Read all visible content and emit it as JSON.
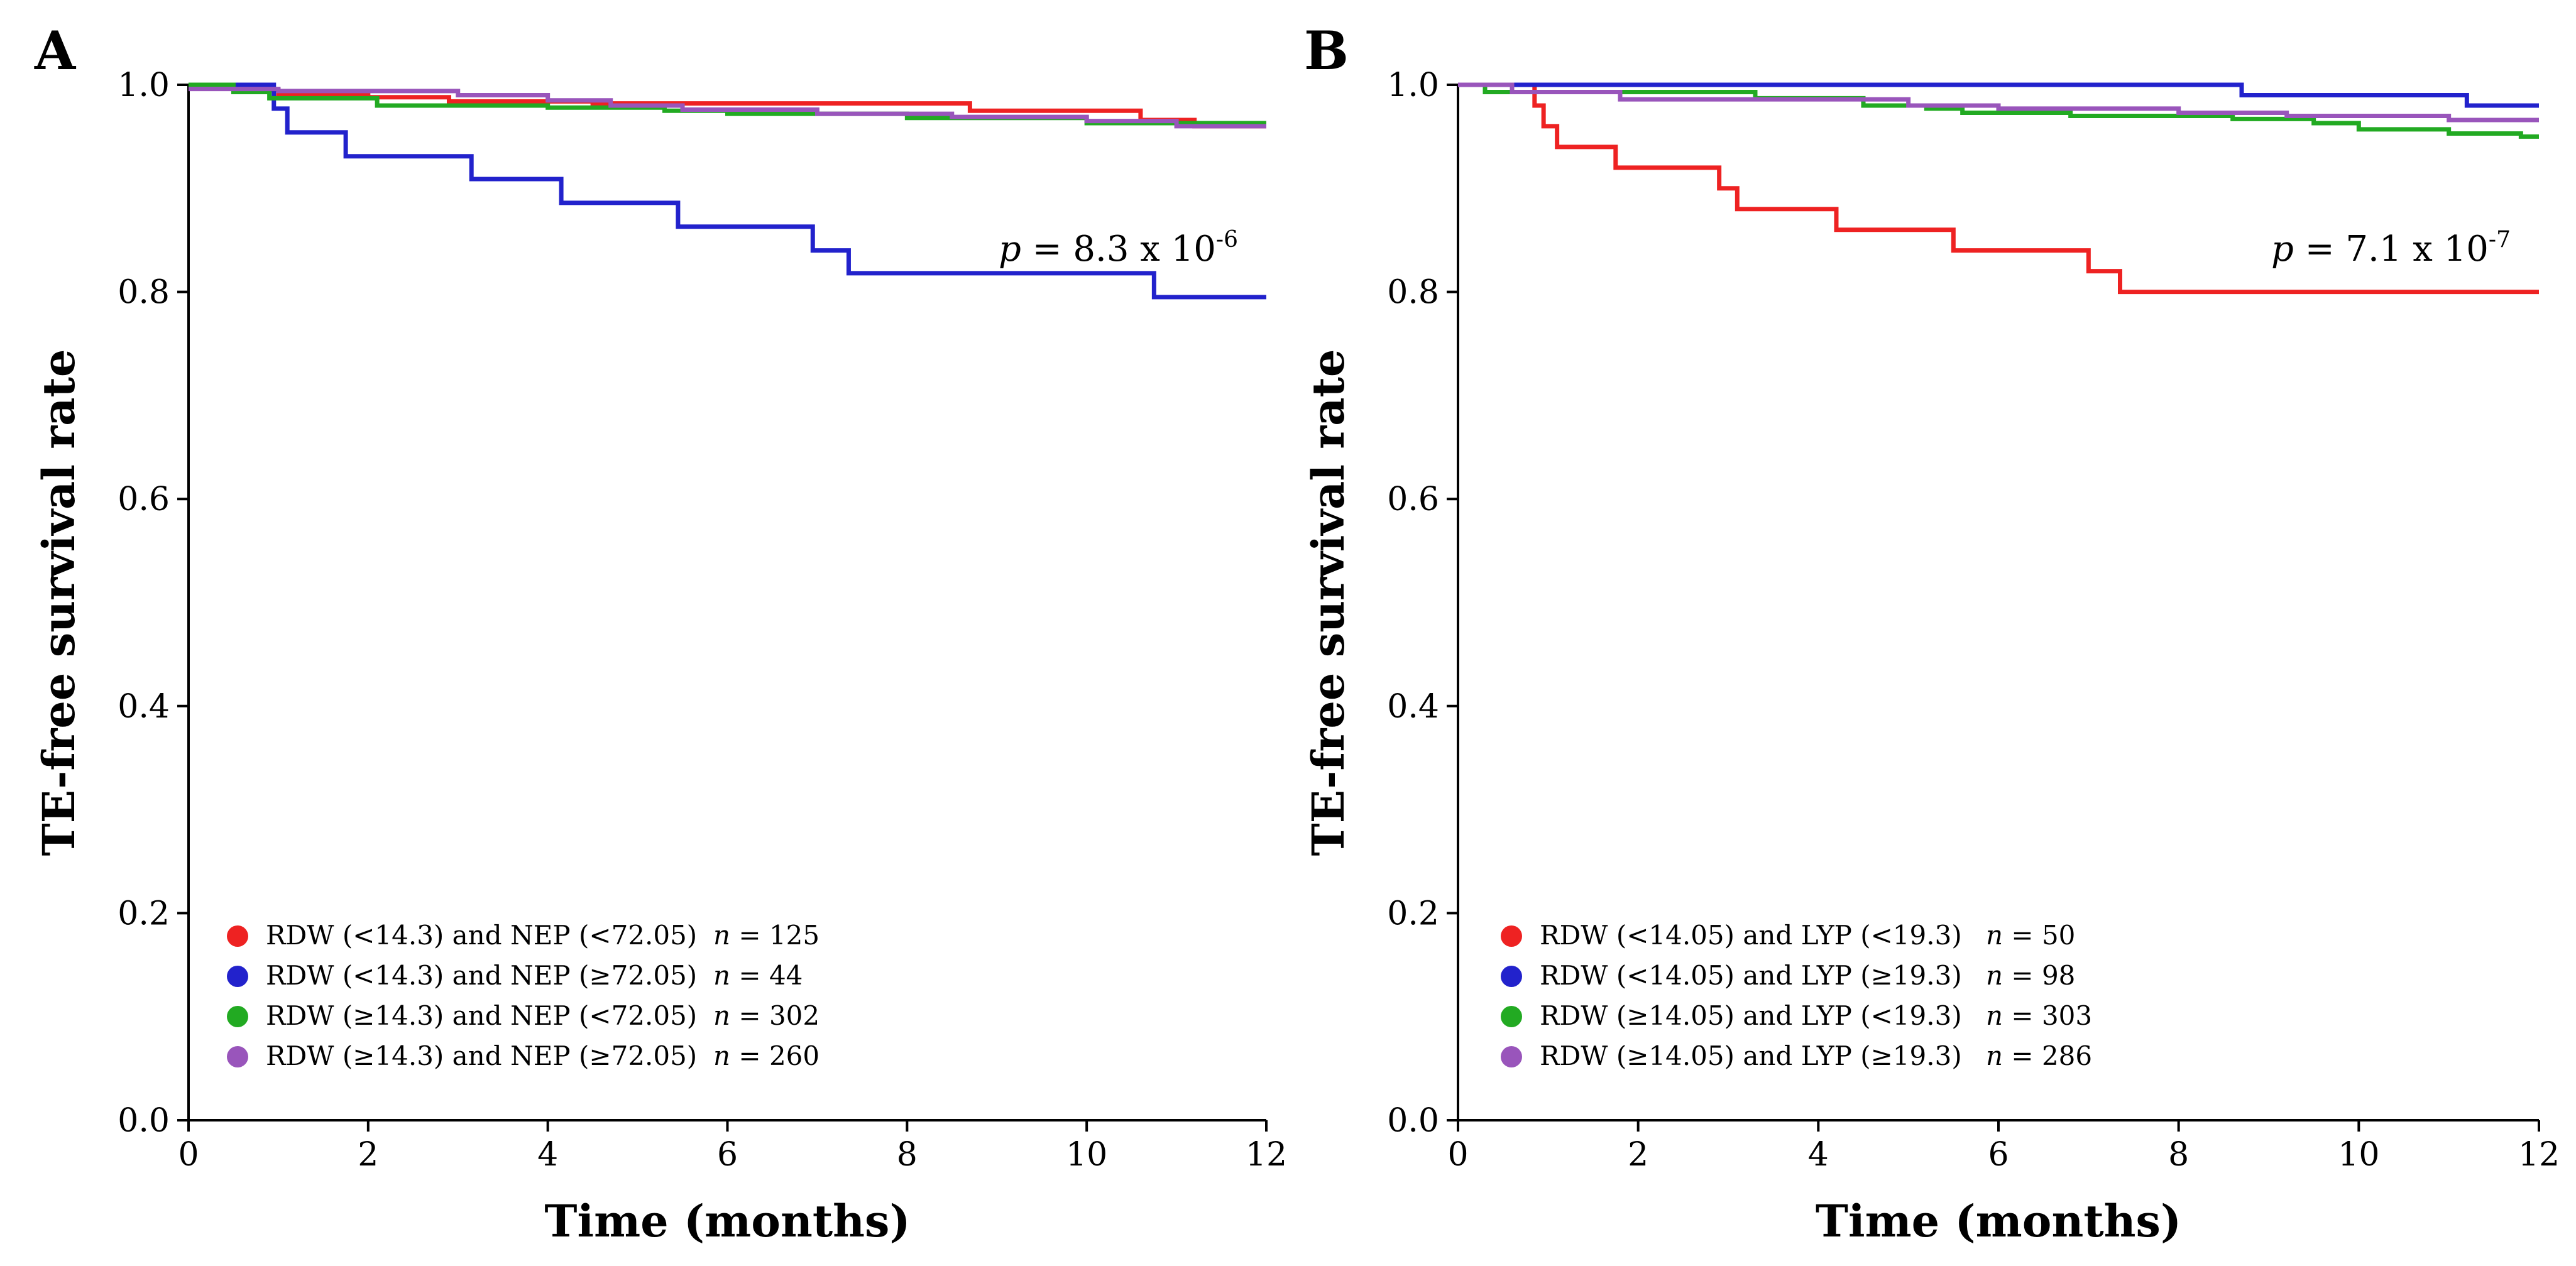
{
  "chart_data": [
    {
      "type": "line",
      "panel": "A",
      "xlabel": "Time (months)",
      "ylabel": "TE-free survival rate",
      "xlim": [
        0,
        12
      ],
      "ylim": [
        0.0,
        1.0
      ],
      "xticks": [
        "0",
        "2",
        "4",
        "6",
        "8",
        "10",
        "12"
      ],
      "yticks": [
        "0.0",
        "0.2",
        "0.4",
        "0.6",
        "0.8",
        "1.0"
      ],
      "p_value": {
        "prefix": "p",
        "eq": " = 8.3 x 10",
        "exp": "-6"
      },
      "legend_position": "bottom-left",
      "series": [
        {
          "name": "RDW (<14.3) and NEP (<72.05)",
          "n_label": "n",
          "n_value": " = 125",
          "color": "#ee2222",
          "steps": [
            [
              0,
              1.0
            ],
            [
              0.6,
              0.995
            ],
            [
              1.0,
              0.99
            ],
            [
              2.0,
              0.988
            ],
            [
              2.9,
              0.984
            ],
            [
              4.5,
              0.982
            ],
            [
              8.7,
              0.975
            ],
            [
              10.6,
              0.966
            ],
            [
              11.2,
              0.96
            ],
            [
              12,
              0.96
            ]
          ]
        },
        {
          "name": "RDW (<14.3) and NEP (≥72.05)",
          "n_label": "n",
          "n_value": " = 44",
          "color": "#2222cc",
          "steps": [
            [
              0,
              1.0
            ],
            [
              0.95,
              0.977
            ],
            [
              1.1,
              0.954
            ],
            [
              1.75,
              0.931
            ],
            [
              3.15,
              0.909
            ],
            [
              4.15,
              0.886
            ],
            [
              5.45,
              0.863
            ],
            [
              6.95,
              0.84
            ],
            [
              7.35,
              0.818
            ],
            [
              10.75,
              0.795
            ],
            [
              12,
              0.795
            ]
          ]
        },
        {
          "name": "RDW (≥14.3) and NEP (<72.05)",
          "n_label": "n",
          "n_value": " = 302",
          "color": "#22aa22",
          "steps": [
            [
              0,
              1.0
            ],
            [
              0.5,
              0.993
            ],
            [
              0.9,
              0.987
            ],
            [
              2.1,
              0.98
            ],
            [
              4.0,
              0.978
            ],
            [
              5.3,
              0.975
            ],
            [
              6.0,
              0.972
            ],
            [
              8.0,
              0.968
            ],
            [
              10.0,
              0.963
            ],
            [
              12,
              0.963
            ]
          ]
        },
        {
          "name": "RDW (≥14.3) and NEP (≥72.05)",
          "n_label": "n",
          "n_value": " = 260",
          "color": "#9955bb",
          "steps": [
            [
              0,
              0.996
            ],
            [
              1.0,
              0.994
            ],
            [
              3.0,
              0.99
            ],
            [
              4.0,
              0.985
            ],
            [
              4.7,
              0.98
            ],
            [
              5.5,
              0.976
            ],
            [
              7.0,
              0.972
            ],
            [
              8.5,
              0.969
            ],
            [
              10.0,
              0.965
            ],
            [
              11.0,
              0.96
            ],
            [
              12,
              0.96
            ]
          ]
        }
      ]
    },
    {
      "type": "line",
      "panel": "B",
      "xlabel": "Time (months)",
      "ylabel": "TE-free survival rate",
      "xlim": [
        0,
        12
      ],
      "ylim": [
        0.0,
        1.0
      ],
      "xticks": [
        "0",
        "2",
        "4",
        "6",
        "8",
        "10",
        "12"
      ],
      "yticks": [
        "0.0",
        "0.2",
        "0.4",
        "0.6",
        "0.8",
        "1.0"
      ],
      "p_value": {
        "prefix": "p",
        "eq": " = 7.1 x 10",
        "exp": "-7"
      },
      "legend_position": "bottom-left",
      "series": [
        {
          "name": "RDW (<14.05) and LYP (<19.3)",
          "n_label": "n",
          "n_value": " = 50",
          "color": "#ee2222",
          "steps": [
            [
              0,
              1.0
            ],
            [
              0.85,
              0.98
            ],
            [
              0.95,
              0.96
            ],
            [
              1.1,
              0.94
            ],
            [
              1.75,
              0.92
            ],
            [
              2.9,
              0.9
            ],
            [
              3.1,
              0.88
            ],
            [
              4.2,
              0.86
            ],
            [
              5.5,
              0.84
            ],
            [
              7.0,
              0.82
            ],
            [
              7.35,
              0.8
            ],
            [
              12,
              0.8
            ]
          ]
        },
        {
          "name": "RDW (<14.05) and LYP (≥19.3)",
          "n_label": "n",
          "n_value": " = 98",
          "color": "#2222cc",
          "steps": [
            [
              0,
              1.0
            ],
            [
              8.7,
              0.99
            ],
            [
              11.2,
              0.98
            ],
            [
              12,
              0.98
            ]
          ]
        },
        {
          "name": "RDW (≥14.05) and LYP (<19.3)",
          "n_label": "n",
          "n_value": " = 303",
          "color": "#22aa22",
          "steps": [
            [
              0,
              1.0
            ],
            [
              0.3,
              0.993
            ],
            [
              3.3,
              0.987
            ],
            [
              4.5,
              0.98
            ],
            [
              5.2,
              0.977
            ],
            [
              5.6,
              0.973
            ],
            [
              6.8,
              0.97
            ],
            [
              8.6,
              0.967
            ],
            [
              9.5,
              0.963
            ],
            [
              10.0,
              0.957
            ],
            [
              11.0,
              0.953
            ],
            [
              11.8,
              0.95
            ],
            [
              12,
              0.95
            ]
          ]
        },
        {
          "name": "RDW (≥14.05) and LYP (≥19.3)",
          "n_label": "n",
          "n_value": " = 286",
          "color": "#9955bb",
          "steps": [
            [
              0,
              1.0
            ],
            [
              0.6,
              0.993
            ],
            [
              1.8,
              0.986
            ],
            [
              5.0,
              0.98
            ],
            [
              6.0,
              0.977
            ],
            [
              8.0,
              0.973
            ],
            [
              9.2,
              0.97
            ],
            [
              11.0,
              0.966
            ],
            [
              12,
              0.966
            ]
          ]
        }
      ]
    }
  ]
}
